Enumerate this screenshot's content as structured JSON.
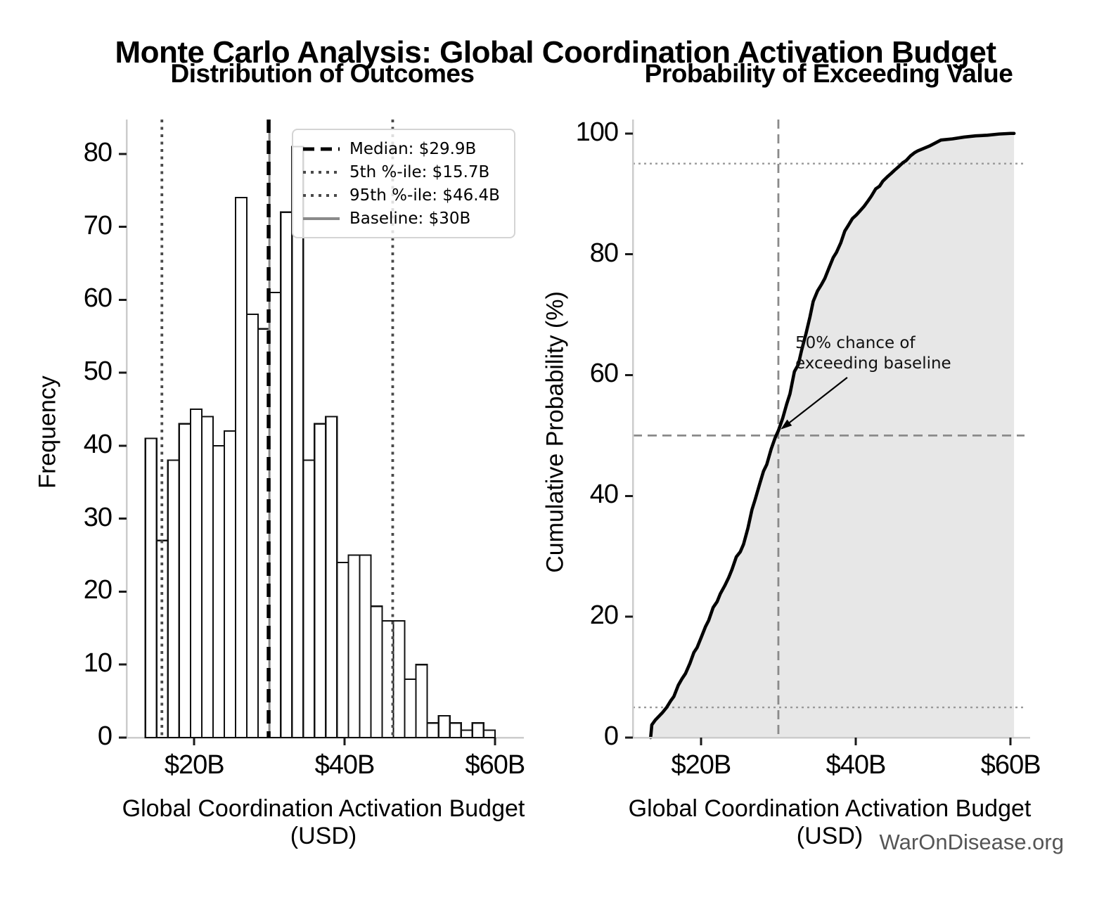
{
  "header": {
    "title": "Monte Carlo Analysis: Global Coordination Activation Budget"
  },
  "footer": {
    "watermark": "WarOnDisease.org"
  },
  "colors": {
    "bar_fill": "#ffffff",
    "bar_edge": "#111111",
    "median_line": "#000000",
    "percentile_line": "#4a4a4a",
    "baseline_line": "#8a8a8a",
    "curve": "#000000",
    "area_fill": "#e7e7e7",
    "ref_line": "#8a8a8a",
    "ref_dotted": "#999999",
    "spine": "#cccccc",
    "tick_mark": "#1a1a1a",
    "watermark": "#555555"
  },
  "chart_data": [
    {
      "type": "bar",
      "subtype": "histogram",
      "title": "Distribution of Outcomes",
      "xlabel": "Global Coordination Activation Budget (USD)",
      "ylabel": "Frequency",
      "bin_start_billion": 13.5,
      "bin_width_billion": 1.5,
      "counts": [
        41,
        27,
        38,
        43,
        45,
        44,
        40,
        42,
        74,
        58,
        56,
        61,
        72,
        81,
        38,
        43,
        44,
        24,
        25,
        25,
        18,
        16,
        16,
        8,
        10,
        2,
        3,
        2,
        1,
        2,
        1
      ],
      "total_samples": 1000,
      "xlim": [
        11.0,
        63.1
      ],
      "ylim": [
        0,
        84.7
      ],
      "xticks": {
        "values": [
          20,
          40,
          60
        ],
        "labels": [
          "$20B",
          "$40B",
          "$60B"
        ]
      },
      "yticks": {
        "values": [
          0,
          10,
          20,
          30,
          40,
          50,
          60,
          70,
          80
        ],
        "labels": [
          "0",
          "10",
          "20",
          "30",
          "40",
          "50",
          "60",
          "70",
          "80"
        ]
      },
      "grid": false,
      "lines": {
        "median": {
          "value": 29.9,
          "label": "Median: $29.9B",
          "style": "dashed-black"
        },
        "p5": {
          "value": 15.7,
          "label": "5th %-ile: $15.7B",
          "style": "dotted-gray"
        },
        "p95": {
          "value": 46.4,
          "label": "95th %-ile: $46.4B",
          "style": "dotted-gray"
        },
        "baseline": {
          "value": 30.0,
          "label": "Baseline: $30B",
          "style": "solid-gray"
        }
      },
      "legend": {
        "position": "upper-right",
        "entries": [
          {
            "label": "Median: $29.9B",
            "style": "dashed-black"
          },
          {
            "label": "5th %-ile: $15.7B",
            "style": "dotted-gray"
          },
          {
            "label": "95th %-ile: $46.4B",
            "style": "dotted-gray"
          },
          {
            "label": "Baseline: $30B",
            "style": "solid-gray"
          }
        ]
      }
    },
    {
      "type": "line",
      "subtype": "empirical-cdf-with-area",
      "title": "Probability of Exceeding Value",
      "xlabel": "Global Coordination Activation Budget (USD)",
      "ylabel": "Cumulative Probability (%)",
      "xlim": [
        11.2,
        61.8
      ],
      "ylim": [
        0,
        102.3
      ],
      "xticks": {
        "values": [
          20,
          40,
          60
        ],
        "labels": [
          "$20B",
          "$40B",
          "$60B"
        ]
      },
      "yticks": {
        "values": [
          0,
          20,
          40,
          60,
          80,
          100
        ],
        "labels": [
          "0",
          "20",
          "40",
          "60",
          "80",
          "100"
        ]
      },
      "grid": false,
      "cdf_points": [
        [
          13.5,
          0
        ],
        [
          13.65,
          2.1
        ],
        [
          14.1,
          2.9
        ],
        [
          15.0,
          4.1
        ],
        [
          16.5,
          6.8
        ],
        [
          18.0,
          10.6
        ],
        [
          19.5,
          14.9
        ],
        [
          21.0,
          19.4
        ],
        [
          22.5,
          23.8
        ],
        [
          24.0,
          27.8
        ],
        [
          25.5,
          32.0
        ],
        [
          27.0,
          39.4
        ],
        [
          28.5,
          45.2
        ],
        [
          30.0,
          50.8
        ],
        [
          31.5,
          56.9
        ],
        [
          33.0,
          64.1
        ],
        [
          34.5,
          72.2
        ],
        [
          36.0,
          76.0
        ],
        [
          37.5,
          80.3
        ],
        [
          39.0,
          84.7
        ],
        [
          40.5,
          87.1
        ],
        [
          42.0,
          89.6
        ],
        [
          43.5,
          92.1
        ],
        [
          45.0,
          93.9
        ],
        [
          46.5,
          95.5
        ],
        [
          48.0,
          97.1
        ],
        [
          49.5,
          97.9
        ],
        [
          51.0,
          98.9
        ],
        [
          52.5,
          99.1
        ],
        [
          54.0,
          99.4
        ],
        [
          55.5,
          99.6
        ],
        [
          57.0,
          99.7
        ],
        [
          58.5,
          99.9
        ],
        [
          60.0,
          100
        ],
        [
          60.45,
          100
        ]
      ],
      "ref_lines": {
        "h_dotted": [
          5,
          95
        ],
        "h_dashed": 50,
        "v_dashed_baseline": 30
      },
      "annotation": {
        "lines": [
          "50% chance of",
          "exceeding baseline"
        ],
        "arrow_tip": [
          30.3,
          51.0
        ],
        "arrow_tail": [
          38.9,
          59.6
        ]
      }
    }
  ]
}
